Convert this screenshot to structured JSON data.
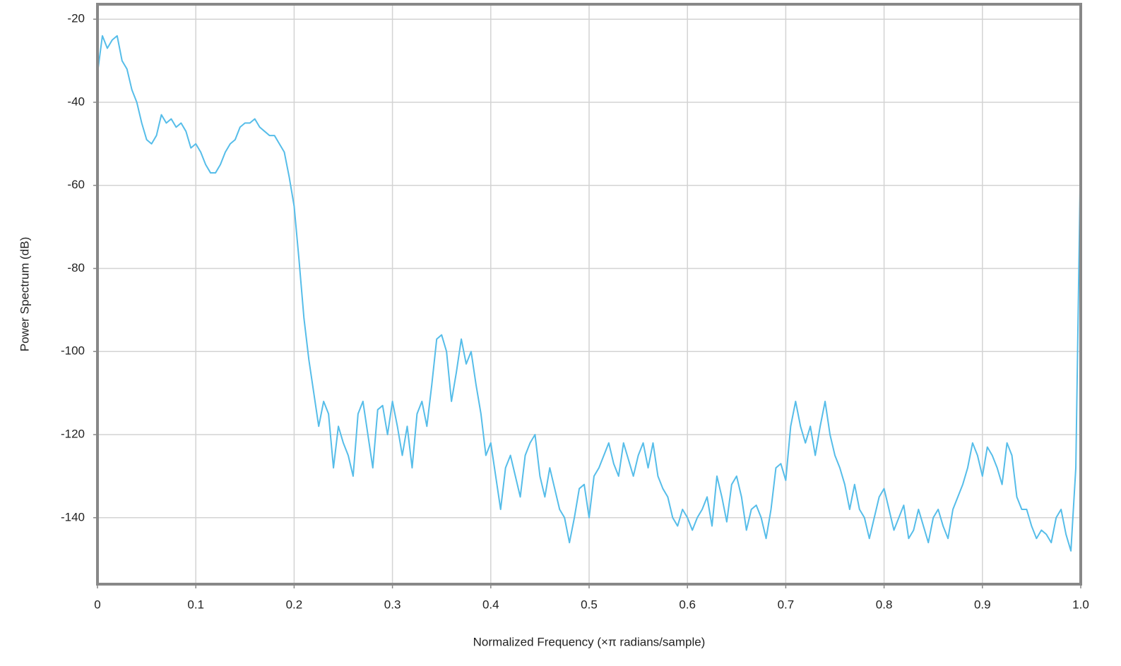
{
  "chart_data": {
    "type": "line",
    "xlabel": "Normalized Frequency (×π radians/sample)",
    "ylabel": "Power Spectrum (dB)",
    "xlim": [
      0,
      1
    ],
    "ylim": [
      -156,
      -16.4
    ],
    "xticks": [
      0,
      0.1,
      0.2,
      0.3,
      0.4,
      0.5,
      0.6,
      0.7,
      0.8,
      0.9,
      {
        "value": 1,
        "label": "1.0"
      }
    ],
    "yticks": [
      -20,
      -40,
      -60,
      -80,
      -100,
      -120,
      -140
    ],
    "grid": true,
    "x": [
      0,
      0.005,
      0.01,
      0.015,
      0.02,
      0.025,
      0.03,
      0.035,
      0.04,
      0.045,
      0.05,
      0.055,
      0.06,
      0.065,
      0.07,
      0.075,
      0.08,
      0.085,
      0.09,
      0.095,
      0.1,
      0.105,
      0.11,
      0.115,
      0.12,
      0.125,
      0.13,
      0.135,
      0.14,
      0.145,
      0.15,
      0.155,
      0.16,
      0.165,
      0.17,
      0.175,
      0.18,
      0.185,
      0.19,
      0.195,
      0.2,
      0.205,
      0.21,
      0.215,
      0.22,
      0.225,
      0.23,
      0.235,
      0.24,
      0.245,
      0.25,
      0.255,
      0.26,
      0.265,
      0.27,
      0.275,
      0.28,
      0.285,
      0.29,
      0.295,
      0.3,
      0.305,
      0.31,
      0.315,
      0.32,
      0.325,
      0.33,
      0.335,
      0.34,
      0.345,
      0.35,
      0.355,
      0.36,
      0.365,
      0.37,
      0.375,
      0.38,
      0.385,
      0.39,
      0.395,
      0.4,
      0.405,
      0.41,
      0.415,
      0.42,
      0.425,
      0.43,
      0.435,
      0.44,
      0.445,
      0.45,
      0.455,
      0.46,
      0.465,
      0.47,
      0.475,
      0.48,
      0.485,
      0.49,
      0.495,
      0.5,
      0.505,
      0.51,
      0.515,
      0.52,
      0.525,
      0.53,
      0.535,
      0.54,
      0.545,
      0.55,
      0.555,
      0.56,
      0.565,
      0.57,
      0.575,
      0.58,
      0.585,
      0.59,
      0.595,
      0.6,
      0.605,
      0.61,
      0.615,
      0.62,
      0.625,
      0.63,
      0.635,
      0.64,
      0.645,
      0.65,
      0.655,
      0.66,
      0.665,
      0.67,
      0.675,
      0.68,
      0.685,
      0.69,
      0.695,
      0.7,
      0.705,
      0.71,
      0.715,
      0.72,
      0.725,
      0.73,
      0.735,
      0.74,
      0.745,
      0.75,
      0.755,
      0.76,
      0.765,
      0.77,
      0.775,
      0.78,
      0.785,
      0.79,
      0.795,
      0.8,
      0.805,
      0.81,
      0.815,
      0.82,
      0.825,
      0.83,
      0.835,
      0.84,
      0.845,
      0.85,
      0.855,
      0.86,
      0.865,
      0.87,
      0.875,
      0.88,
      0.885,
      0.89,
      0.895,
      0.9,
      0.905,
      0.91,
      0.915,
      0.92,
      0.925,
      0.93,
      0.935,
      0.94,
      0.945,
      0.95,
      0.955,
      0.96,
      0.965,
      0.97,
      0.975,
      0.98,
      0.985,
      0.99,
      0.995,
      1
    ],
    "series": [
      {
        "color": "#56bde9",
        "values": [
          -33,
          -24,
          -27,
          -25,
          -24,
          -30,
          -32,
          -37,
          -40,
          -45,
          -49,
          -50,
          -48,
          -43,
          -45,
          -44,
          -46,
          -45,
          -47,
          -51,
          -50,
          -52,
          -55,
          -57,
          -57,
          -55,
          -52,
          -50,
          -49,
          -46,
          -45,
          -45,
          -44,
          -46,
          -47,
          -48,
          -48,
          -50,
          -52,
          -58,
          -65,
          -78,
          -92,
          -102,
          -110,
          -118,
          -112,
          -115,
          -128,
          -118,
          -122,
          -125,
          -130,
          -115,
          -112,
          -120,
          -128,
          -114,
          -113,
          -120,
          -112,
          -118,
          -125,
          -118,
          -128,
          -115,
          -112,
          -118,
          -108,
          -97,
          -96,
          -100,
          -112,
          -105,
          -97,
          -103,
          -100,
          -108,
          -115,
          -125,
          -122,
          -130,
          -138,
          -128,
          -125,
          -130,
          -135,
          -125,
          -122,
          -120,
          -130,
          -135,
          -128,
          -133,
          -138,
          -140,
          -146,
          -140,
          -133,
          -132,
          -140,
          -130,
          -128,
          -125,
          -122,
          -127,
          -130,
          -122,
          -126,
          -130,
          -125,
          -122,
          -128,
          -122,
          -130,
          -133,
          -135,
          -140,
          -142,
          -138,
          -140,
          -143,
          -140,
          -138,
          -135,
          -142,
          -130,
          -135,
          -141,
          -132,
          -130,
          -135,
          -143,
          -138,
          -137,
          -140,
          -145,
          -138,
          -128,
          -127,
          -131,
          -118,
          -112,
          -118,
          -122,
          -118,
          -125,
          -118,
          -112,
          -120,
          -125,
          -128,
          -132,
          -138,
          -132,
          -138,
          -140,
          -145,
          -140,
          -135,
          -133,
          -138,
          -143,
          -140,
          -137,
          -145,
          -143,
          -138,
          -142,
          -146,
          -140,
          -138,
          -142,
          -145,
          -138,
          -135,
          -132,
          -128,
          -122,
          -125,
          -130,
          -123,
          -125,
          -128,
          -132,
          -122,
          -125,
          -135,
          -138,
          -138,
          -142,
          -145,
          -143,
          -144,
          -146,
          -140,
          -138,
          -144,
          -148,
          -128,
          -50
        ]
      }
    ]
  }
}
